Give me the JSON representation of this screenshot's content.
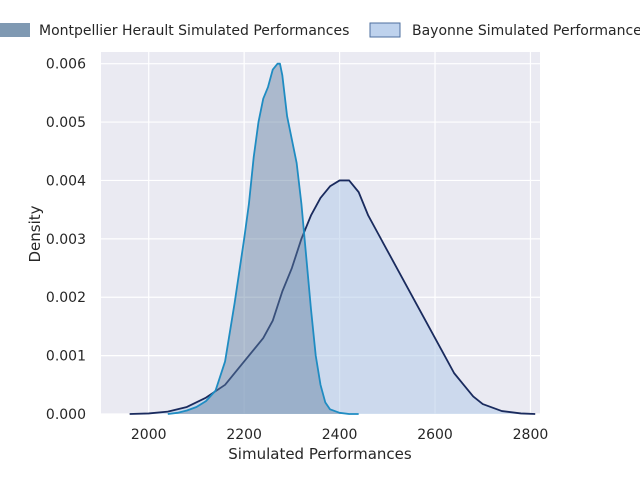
{
  "chart_data": {
    "type": "area",
    "xlabel": "Simulated Performances",
    "ylabel": "Density",
    "xlim": [
      1900,
      2820
    ],
    "ylim": [
      0,
      0.0062
    ],
    "x_ticks": [
      2000,
      2200,
      2400,
      2600,
      2800
    ],
    "x_tick_labels": [
      "2000",
      "2200",
      "2400",
      "2600",
      "2800"
    ],
    "y_ticks": [
      0,
      0.001,
      0.002,
      0.003,
      0.004,
      0.005,
      0.006
    ],
    "y_tick_labels": [
      "0.000",
      "0.001",
      "0.002",
      "0.003",
      "0.004",
      "0.005",
      "0.006"
    ],
    "grid": true,
    "legend_position": "top-center",
    "series": [
      {
        "name": "Montpellier Herault Simulated Performances",
        "line_color": "#1f8cc2",
        "fill_color": "#5f7f9f",
        "fill_opacity": 0.45,
        "x": [
          2040,
          2060,
          2080,
          2100,
          2120,
          2140,
          2160,
          2180,
          2200,
          2210,
          2220,
          2230,
          2240,
          2250,
          2260,
          2270,
          2275,
          2280,
          2290,
          2300,
          2310,
          2320,
          2330,
          2340,
          2350,
          2360,
          2370,
          2380,
          2400,
          2420,
          2440
        ],
        "y": [
          0.0,
          2e-05,
          6e-05,
          0.00012,
          0.00022,
          0.0004,
          0.0009,
          0.0019,
          0.003,
          0.0036,
          0.0044,
          0.005,
          0.0054,
          0.0056,
          0.0059,
          0.006,
          0.006,
          0.0058,
          0.0051,
          0.0047,
          0.0043,
          0.0036,
          0.0027,
          0.0018,
          0.001,
          0.0005,
          0.0002,
          8e-05,
          2e-05,
          0.0,
          0.0
        ]
      },
      {
        "name": "Bayonne Simulated Performances",
        "line_color": "#1a2b5e",
        "fill_color": "#aec7e8",
        "fill_opacity": 0.5,
        "x": [
          1960,
          2000,
          2040,
          2080,
          2120,
          2160,
          2200,
          2240,
          2260,
          2280,
          2300,
          2320,
          2340,
          2360,
          2380,
          2400,
          2420,
          2440,
          2460,
          2480,
          2500,
          2520,
          2540,
          2560,
          2580,
          2600,
          2620,
          2640,
          2660,
          2680,
          2700,
          2740,
          2780,
          2810
        ],
        "y": [
          0.0,
          1e-05,
          4e-05,
          0.00012,
          0.00028,
          0.0005,
          0.0009,
          0.0013,
          0.0016,
          0.0021,
          0.0025,
          0.003,
          0.0034,
          0.0037,
          0.0039,
          0.004,
          0.004,
          0.0038,
          0.0034,
          0.0031,
          0.0028,
          0.0025,
          0.0022,
          0.0019,
          0.0016,
          0.0013,
          0.001,
          0.0007,
          0.0005,
          0.0003,
          0.00017,
          5e-05,
          1e-05,
          0.0
        ]
      }
    ]
  }
}
